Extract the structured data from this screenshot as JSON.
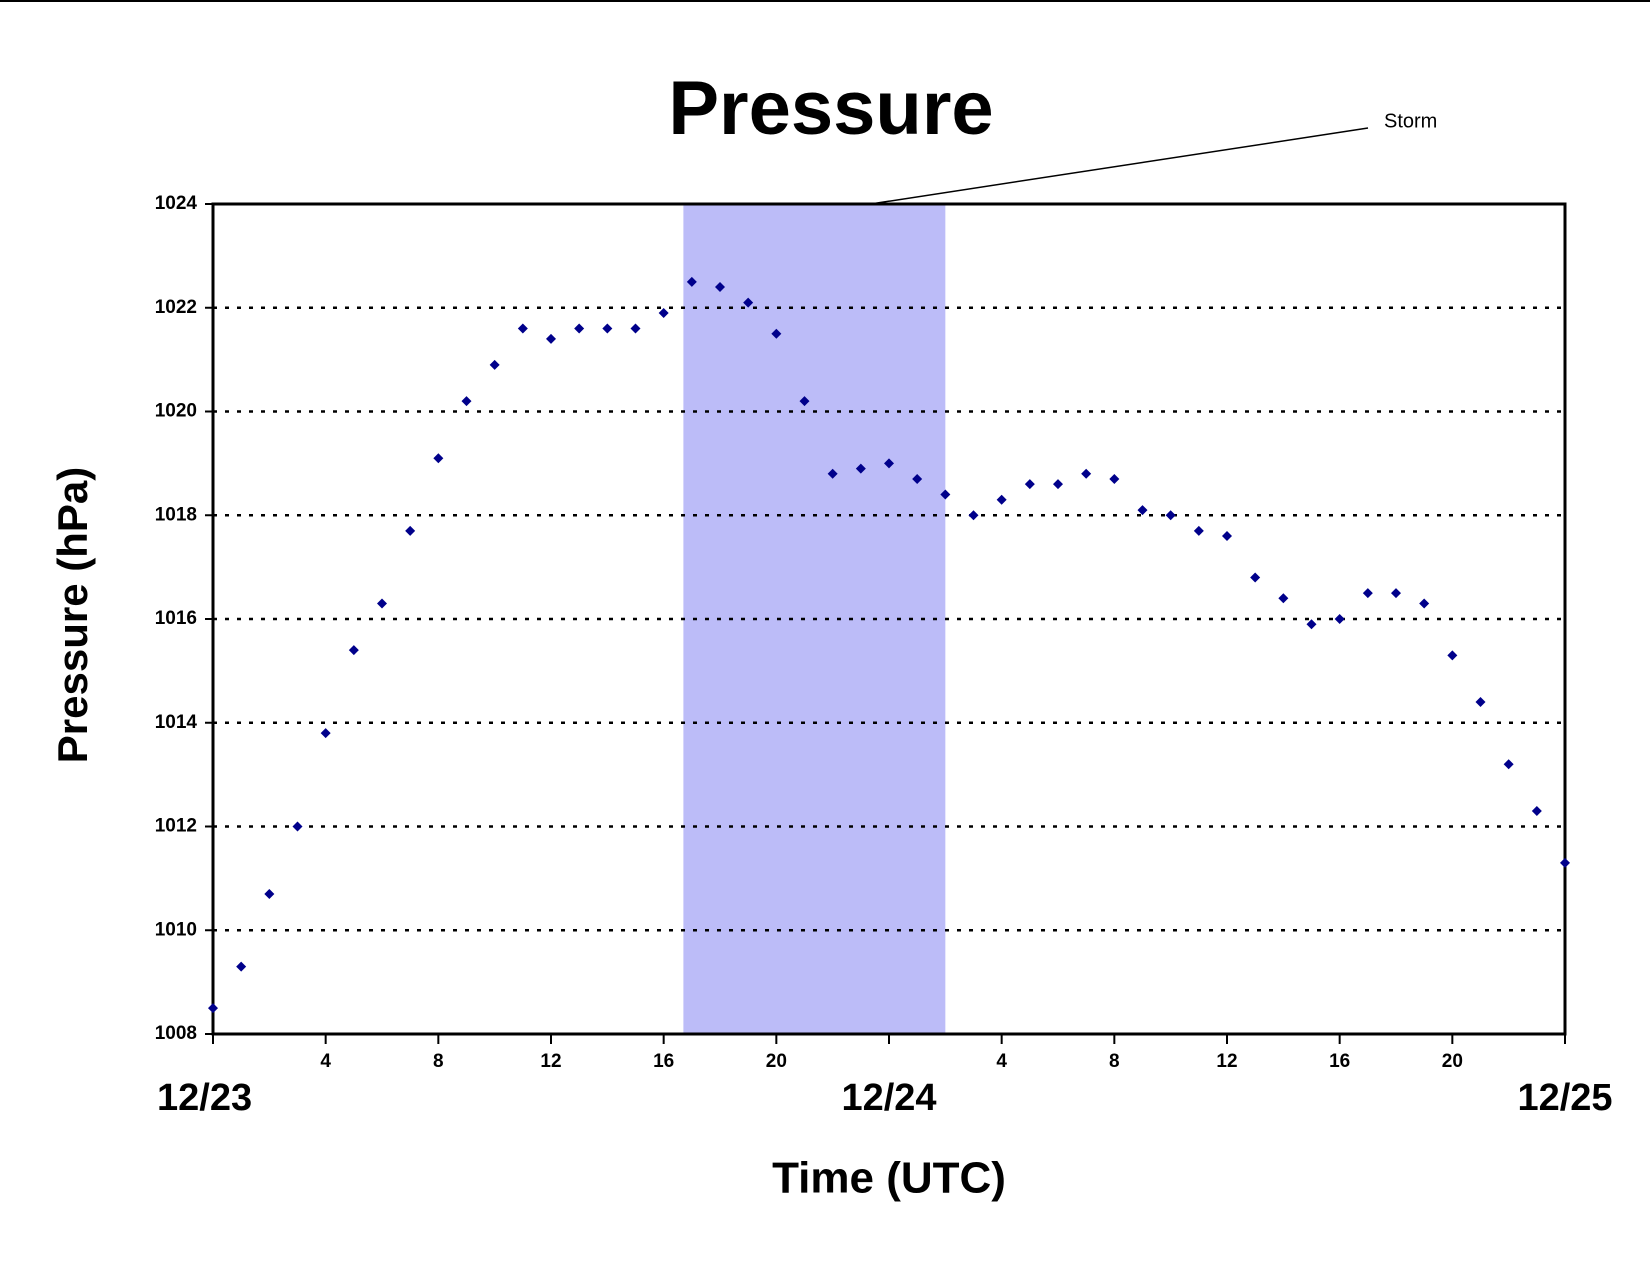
{
  "chart_data": {
    "type": "scatter",
    "title": "Pressure",
    "x_label": "Time (UTC)",
    "y_label": "Pressure (hPa)",
    "x": [
      0,
      1,
      2,
      3,
      4,
      5,
      6,
      7,
      8,
      9,
      10,
      11,
      12,
      13,
      14,
      15,
      16,
      17,
      18,
      19,
      20,
      21,
      22,
      23,
      24,
      25,
      26,
      27,
      28,
      29,
      30,
      31,
      32,
      33,
      34,
      35,
      36,
      37,
      38,
      39,
      40,
      41,
      42,
      43,
      44,
      45,
      46,
      47,
      48
    ],
    "series": [
      {
        "color": "#00008b",
        "values": [
          1008.5,
          1009.3,
          1010.7,
          1012.0,
          1013.8,
          1015.4,
          1016.3,
          1017.7,
          1019.1,
          1020.2,
          1020.9,
          1021.6,
          1021.4,
          1021.6,
          1021.6,
          1021.6,
          1021.9,
          1022.5,
          1022.4,
          1022.1,
          1021.5,
          1020.2,
          1018.8,
          1018.9,
          1019.0,
          1018.7,
          1018.4,
          1018.0,
          1018.3,
          1018.6,
          1018.6,
          1018.8,
          1018.7,
          1018.1,
          1018.0,
          1017.7,
          1017.6,
          1016.8,
          1016.4,
          1015.9,
          1016.0,
          1016.5,
          1016.5,
          1016.3,
          1015.3,
          1014.4,
          1013.2,
          1012.3,
          1011.3
        ]
      }
    ],
    "xlim": [
      0,
      48
    ],
    "xticks": [
      4,
      8,
      12,
      16,
      20,
      {
        "value": 28,
        "label": "4"
      },
      {
        "value": 32,
        "label": "8"
      },
      {
        "value": 36,
        "label": "12"
      },
      {
        "value": 40,
        "label": "16"
      },
      {
        "value": 44,
        "label": "20"
      }
    ],
    "date_ticks": [
      {
        "value": 0,
        "label": "12/23"
      },
      {
        "value": 24,
        "label": "12/24"
      },
      {
        "value": 48,
        "label": "12/25"
      }
    ],
    "ylim": [
      1008,
      1024
    ],
    "yticks": [
      1008,
      1010,
      1012,
      1014,
      1016,
      1018,
      1020,
      1022,
      1024
    ],
    "grid": true,
    "annotation": {
      "text": "Storm",
      "span": [
        16.7,
        26
      ],
      "color": "#bcbcf8"
    }
  }
}
